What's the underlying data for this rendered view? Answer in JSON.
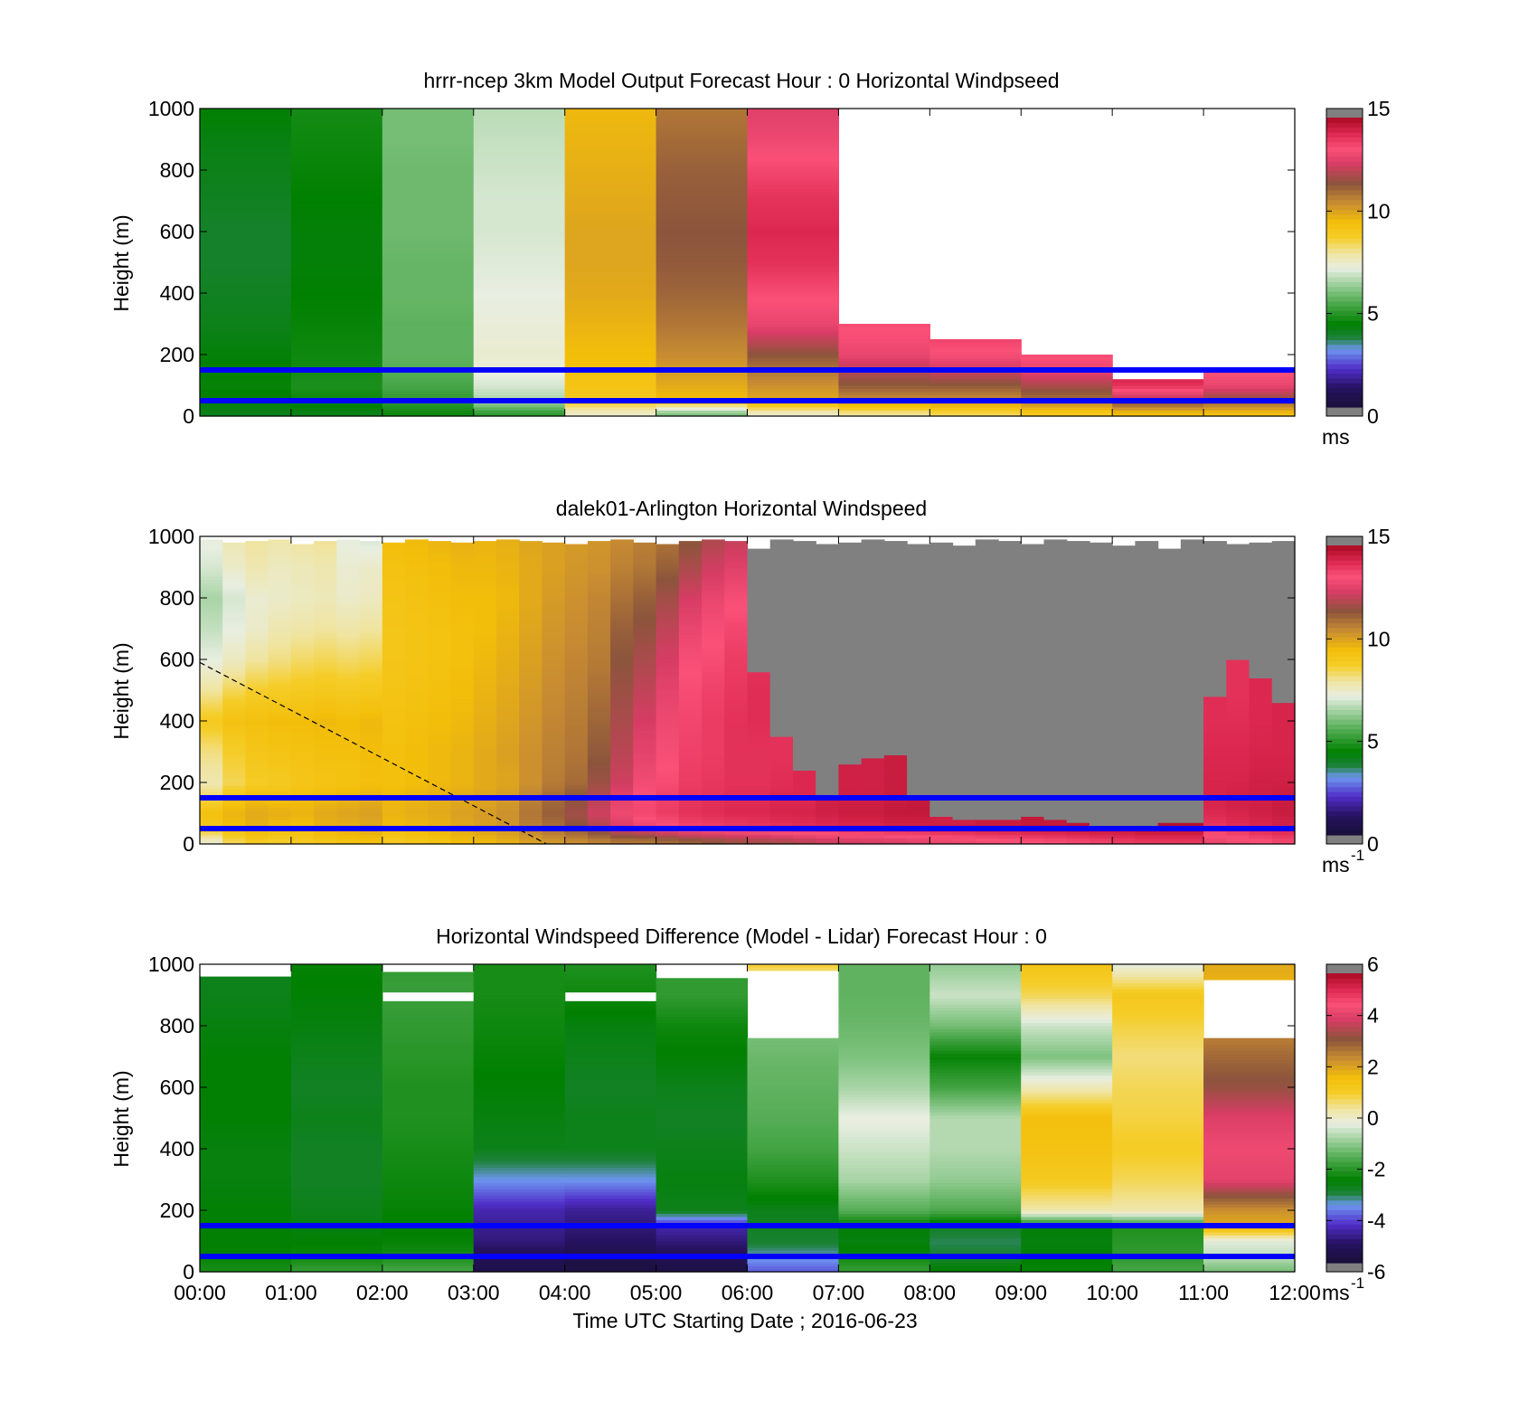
{
  "figure": {
    "xlabel": "Time UTC  Starting Date ; 2016-06-23",
    "x_ticks": [
      "00:00",
      "01:00",
      "02:00",
      "03:00",
      "04:00",
      "05:00",
      "06:00",
      "07:00",
      "08:00",
      "09:00",
      "10:00",
      "11:00",
      "12:00"
    ]
  },
  "chart_data": [
    {
      "type": "heatmap",
      "title": "hrrr-ncep 3km Model Output   Forecast Hour : 0 Horizontal Windpseed",
      "ylabel": "Height (m)",
      "ylim": [
        0,
        1000
      ],
      "xlim": [
        0,
        12
      ],
      "y_ticks": [
        "0",
        "200",
        "400",
        "600",
        "800",
        "1000"
      ],
      "colorbar": {
        "min": 0,
        "max": 15,
        "ticks": [
          "0",
          "5",
          "10",
          "15"
        ],
        "unit": "ms",
        "unit_sup": ""
      },
      "reference_lines_m": [
        50,
        150
      ],
      "reference_line_color": "#0000ff",
      "x_hours": [
        0,
        1,
        2,
        3,
        4,
        5,
        6,
        7,
        8,
        9,
        10,
        11
      ],
      "column_top_m": [
        1000,
        1000,
        1000,
        1000,
        1000,
        1000,
        1000,
        300,
        250,
        200,
        120,
        150
      ],
      "gray_above_m": [
        null,
        null,
        null,
        null,
        null,
        null,
        null,
        300,
        250,
        200,
        120,
        150
      ],
      "profile_heights_m": [
        10,
        50,
        100,
        150,
        200,
        300,
        400,
        500,
        600,
        700,
        800,
        900,
        1000
      ],
      "windspeed_ms": [
        [
          4.0,
          4.2,
          4.4,
          4.3,
          4.2,
          4.0,
          3.9,
          3.8,
          3.8,
          3.9,
          4.0,
          4.1,
          4.3
        ],
        [
          4.0,
          4.5,
          4.7,
          4.6,
          4.5,
          4.4,
          4.3,
          4.2,
          4.2,
          4.3,
          4.4,
          4.5,
          4.6
        ],
        [
          4.5,
          5.0,
          5.3,
          5.5,
          5.6,
          5.6,
          5.7,
          5.7,
          5.8,
          5.8,
          5.8,
          5.9,
          5.9
        ],
        [
          5.0,
          6.5,
          7.0,
          7.3,
          7.4,
          7.3,
          7.2,
          7.1,
          7.0,
          7.0,
          6.9,
          6.8,
          6.7
        ],
        [
          7.5,
          9.0,
          9.3,
          9.5,
          9.6,
          9.8,
          10.0,
          10.1,
          10.1,
          10.0,
          9.9,
          9.8,
          9.7
        ],
        [
          6.0,
          9.5,
          10.0,
          10.3,
          10.6,
          11.0,
          11.3,
          11.5,
          11.6,
          11.5,
          11.4,
          11.2,
          11.0
        ],
        [
          7.5,
          10.0,
          10.5,
          11.0,
          11.6,
          13.0,
          13.5,
          14.0,
          14.2,
          14.0,
          13.6,
          13.1,
          12.8
        ],
        [
          8.0,
          10.5,
          11.5,
          12.2,
          13.0,
          13.5
        ],
        [
          8.5,
          10.5,
          11.5,
          12.5,
          13.3,
          14.0
        ],
        [
          9.0,
          11.0,
          12.0,
          13.0,
          13.5
        ],
        [
          9.5,
          12.0,
          14.0,
          14.5
        ],
        [
          9.5,
          11.5,
          13.0,
          13.5
        ]
      ]
    },
    {
      "type": "heatmap",
      "title": "dalek01-Arlington  Horizontal Windspeed",
      "ylabel": "Height (m)",
      "ylim": [
        0,
        1000
      ],
      "xlim": [
        0,
        12
      ],
      "y_ticks": [
        "0",
        "200",
        "400",
        "600",
        "800",
        "1000"
      ],
      "colorbar": {
        "min": 0,
        "max": 15,
        "ticks": [
          "0",
          "5",
          "10",
          "15"
        ],
        "unit": "ms",
        "unit_sup": "-1"
      },
      "reference_lines_m": [
        50,
        150
      ],
      "reference_line_color": "#0000ff",
      "diagonal_line_m": {
        "x_hours": [
          0,
          3.8
        ],
        "heights_m": [
          590,
          0
        ]
      },
      "x_hours": [
        0,
        0.25,
        0.5,
        0.75,
        1,
        1.25,
        1.5,
        1.75,
        2,
        2.25,
        2.5,
        2.75,
        3,
        3.25,
        3.5,
        3.75,
        4,
        4.25,
        4.5,
        4.75,
        5,
        5.25,
        5.5,
        5.75,
        6,
        6.25,
        6.5,
        6.75,
        7,
        7.25,
        7.5,
        7.75,
        8,
        8.25,
        8.5,
        8.75,
        9,
        9.25,
        9.5,
        9.75,
        10,
        10.25,
        10.5,
        10.75,
        11,
        11.25,
        11.5,
        11.75
      ],
      "column_top_m": [
        990,
        980,
        985,
        990,
        975,
        985,
        990,
        985,
        980,
        990,
        985,
        980,
        985,
        990,
        985,
        980,
        975,
        985,
        990,
        980,
        975,
        985,
        990,
        985,
        960,
        990,
        985,
        975,
        980,
        990,
        985,
        975,
        980,
        970,
        990,
        985,
        975,
        990,
        985,
        980,
        970,
        985,
        960,
        990,
        985,
        975,
        980,
        985
      ],
      "gray_above_m": [
        null,
        null,
        null,
        null,
        null,
        null,
        null,
        null,
        null,
        null,
        null,
        null,
        null,
        null,
        null,
        null,
        null,
        null,
        null,
        null,
        null,
        null,
        null,
        null,
        560,
        350,
        240,
        160,
        260,
        280,
        290,
        160,
        90,
        85,
        85,
        80,
        90,
        80,
        70,
        65,
        60,
        60,
        70,
        70,
        480,
        600,
        540,
        460
      ],
      "profile_heights_m": [
        10,
        50,
        100,
        150,
        200,
        300,
        400,
        500,
        600,
        700,
        800,
        900,
        1000
      ],
      "windspeed_ms": [
        [
          7.5,
          9.0,
          9.5,
          8.5,
          7.8,
          8.2,
          9.0,
          8.0,
          7.2,
          6.8,
          6.5,
          7.0,
          7.3
        ],
        [
          8.5,
          9.5,
          9.8,
          9.2,
          8.5,
          8.8,
          9.4,
          8.5,
          7.6,
          7.2,
          7.0,
          7.5,
          7.8
        ],
        [
          9.0,
          9.8,
          10.0,
          9.6,
          8.9,
          9.2,
          9.5,
          8.8,
          8.0,
          7.5,
          7.4,
          7.8,
          8.0
        ],
        [
          8.8,
          9.6,
          9.9,
          9.5,
          9.0,
          9.3,
          9.6,
          8.9,
          8.2,
          7.8,
          7.5,
          7.6,
          7.9
        ],
        [
          9.0,
          9.5,
          9.8,
          9.6,
          9.2,
          9.4,
          9.6,
          9.0,
          8.4,
          7.9,
          7.6,
          7.7,
          8.0
        ],
        [
          9.2,
          9.8,
          10.0,
          9.7,
          9.3,
          9.5,
          9.7,
          9.1,
          8.5,
          8.0,
          7.7,
          7.8,
          8.1
        ],
        [
          9.4,
          9.9,
          10.1,
          9.8,
          9.4,
          9.5,
          9.6,
          9.0,
          8.4,
          7.9,
          7.5,
          7.4,
          7.2
        ],
        [
          9.5,
          10.0,
          10.2,
          9.9,
          9.5,
          9.6,
          9.7,
          9.1,
          8.5,
          8.0,
          7.6,
          7.5,
          7.0
        ],
        [
          9.0,
          9.6,
          9.8,
          9.7,
          9.5,
          9.5,
          9.4,
          9.3,
          9.2,
          9.2,
          9.3,
          9.4,
          9.6
        ],
        [
          9.2,
          9.7,
          9.9,
          9.8,
          9.6,
          9.6,
          9.5,
          9.4,
          9.3,
          9.3,
          9.4,
          9.5,
          9.7
        ],
        [
          9.4,
          9.8,
          10.0,
          9.9,
          9.7,
          9.7,
          9.6,
          9.5,
          9.4,
          9.4,
          9.5,
          9.6,
          9.8
        ],
        [
          9.6,
          10.0,
          10.2,
          10.0,
          9.8,
          9.8,
          9.7,
          9.6,
          9.5,
          9.5,
          9.6,
          9.7,
          9.9
        ],
        [
          9.7,
          10.2,
          10.3,
          10.1,
          10.0,
          10.0,
          9.9,
          9.8,
          9.7,
          9.6,
          9.6,
          9.7,
          9.8
        ],
        [
          9.9,
          10.4,
          10.5,
          10.3,
          10.1,
          10.2,
          10.1,
          10.0,
          9.9,
          9.8,
          9.7,
          9.8,
          9.9
        ],
        [
          10.2,
          10.8,
          11.0,
          10.8,
          10.5,
          10.5,
          10.4,
          10.3,
          10.2,
          10.1,
          10.0,
          10.0,
          10.1
        ],
        [
          10.4,
          11.1,
          11.4,
          11.2,
          10.9,
          10.8,
          10.7,
          10.6,
          10.5,
          10.4,
          10.3,
          10.2,
          10.2
        ],
        [
          10.6,
          11.5,
          11.9,
          11.6,
          11.2,
          11.0,
          10.9,
          10.8,
          10.7,
          10.6,
          10.5,
          10.4,
          10.3
        ],
        [
          10.8,
          12.0,
          12.5,
          12.2,
          11.8,
          11.5,
          11.3,
          11.1,
          10.9,
          10.8,
          10.7,
          10.5,
          10.4
        ],
        [
          11.0,
          12.6,
          13.1,
          12.9,
          12.5,
          12.2,
          12.0,
          11.8,
          11.6,
          11.4,
          11.1,
          10.8,
          10.6
        ],
        [
          11.0,
          12.9,
          13.6,
          13.5,
          13.2,
          12.9,
          12.6,
          12.3,
          12.0,
          11.7,
          11.4,
          11.0,
          10.8
        ],
        [
          11.2,
          13.2,
          13.8,
          13.7,
          13.5,
          13.3,
          13.1,
          12.9,
          12.6,
          12.3,
          11.9,
          11.4,
          11.0
        ],
        [
          11.4,
          13.5,
          14.0,
          13.9,
          13.8,
          13.7,
          13.6,
          13.5,
          13.3,
          13.0,
          12.6,
          12.0,
          11.5
        ],
        [
          11.6,
          13.6,
          14.1,
          14.0,
          13.9,
          13.8,
          13.8,
          13.7,
          13.5,
          13.3,
          13.0,
          12.5,
          12.0
        ],
        [
          11.8,
          13.7,
          14.2,
          14.1,
          14.0,
          14.0,
          14.0,
          13.9,
          13.8,
          13.6,
          13.3,
          12.8,
          12.3
        ],
        [
          11.9,
          13.8,
          14.2,
          14.1,
          14.0,
          14.0,
          14.1,
          14.1,
          14.0
        ],
        [
          12.0,
          13.9,
          14.3,
          14.2,
          14.1,
          14.0
        ],
        [
          12.2,
          14.0,
          14.3,
          14.2
        ],
        [
          12.4,
          14.1,
          14.4
        ],
        [
          12.5,
          14.2,
          14.5,
          14.4
        ],
        [
          12.6,
          14.2,
          14.5,
          14.4
        ],
        [
          12.7,
          14.3,
          14.6,
          14.5
        ],
        [
          12.8,
          14.3,
          14.6
        ],
        [
          13.0,
          14.4
        ],
        [
          13.1,
          14.4
        ],
        [
          13.2,
          14.5
        ],
        [
          13.3,
          14.5
        ],
        [
          13.4,
          14.6
        ],
        [
          13.5,
          14.6
        ],
        [
          13.6,
          14.7
        ],
        [
          13.7,
          14.7
        ],
        [
          13.8,
          14.7
        ],
        [
          13.9,
          14.8
        ],
        [
          13.9,
          14.8
        ],
        [
          13.9,
          14.8
        ],
        [
          13.0,
          13.8,
          14.2,
          14.3,
          14.3,
          14.2,
          14.1
        ],
        [
          13.2,
          14.0,
          14.3,
          14.4,
          14.3,
          14.2,
          14.1,
          14.0
        ],
        [
          13.4,
          14.2,
          14.4,
          14.4,
          14.4,
          14.3,
          14.2
        ],
        [
          13.6,
          14.3,
          14.5,
          14.5,
          14.4,
          14.3
        ]
      ]
    },
    {
      "type": "heatmap",
      "title": "Horizontal Windspeed Difference (Model - Lidar) Forecast Hour : 0",
      "ylabel": "Height (m)",
      "ylim": [
        0,
        1000
      ],
      "xlim": [
        0,
        12
      ],
      "y_ticks": [
        "0",
        "200",
        "400",
        "600",
        "800",
        "1000"
      ],
      "colorbar": {
        "min": -6,
        "max": 6,
        "ticks": [
          "-6",
          "-4",
          "-2",
          "0",
          "2",
          "4",
          "6"
        ],
        "unit": "ms",
        "unit_sup": "-1"
      },
      "reference_lines_m": [
        50,
        150
      ],
      "reference_line_color": "#0000ff",
      "x_hours": [
        0,
        1,
        2,
        3,
        4,
        5,
        6,
        7,
        8,
        9,
        10,
        11
      ],
      "column_top_m": [
        960,
        1000,
        975,
        1000,
        1000,
        955,
        1000,
        1000,
        1000,
        1000,
        1000,
        1000
      ],
      "gaps_m": [
        [],
        [],
        [
          [
            885,
            915
          ]
        ],
        [],
        [
          [
            880,
            910
          ]
        ],
        [],
        [
          [
            760,
            980
          ]
        ],
        [],
        [],
        [],
        [],
        [
          [
            765,
            955
          ]
        ]
      ],
      "profile_heights_m": [
        10,
        50,
        100,
        150,
        200,
        300,
        400,
        500,
        600,
        700,
        800,
        900,
        1000
      ],
      "difference_ms": [
        [
          -2.3,
          -2.5,
          -2.6,
          -2.6,
          -2.6,
          -2.7,
          -2.7,
          -2.6,
          -2.6,
          -2.6,
          -2.7,
          -2.8,
          -2.8
        ],
        [
          -2.0,
          -2.4,
          -2.6,
          -2.7,
          -2.8,
          -2.9,
          -2.9,
          -2.8,
          -2.9,
          -2.8,
          -2.7,
          -2.6,
          -2.5
        ],
        [
          -1.8,
          -2.3,
          -2.5,
          -2.6,
          -2.5,
          -2.4,
          -2.3,
          -2.2,
          -2.2,
          -2.1,
          -2.0,
          -1.9,
          -2.0
        ],
        [
          -5.6,
          -5.4,
          -5.0,
          -4.8,
          -4.6,
          -3.6,
          -2.8,
          -2.7,
          -2.6,
          -2.5,
          -2.4,
          -2.3,
          -2.3
        ],
        [
          -5.8,
          -5.6,
          -5.2,
          -5.0,
          -4.8,
          -3.6,
          -2.8,
          -2.8,
          -2.9,
          -2.8,
          -2.7,
          -2.4,
          -2.2
        ],
        [
          -5.7,
          -5.4,
          -5.0,
          -4.6,
          -2.8,
          -2.7,
          -2.8,
          -2.9,
          -2.8,
          -2.6,
          -2.4,
          -2.0,
          -2.0
        ],
        [
          -4.0,
          -3.5,
          -3.0,
          -2.9,
          -2.8,
          -2.2,
          -1.8,
          -1.6,
          -1.5,
          -1.4,
          -1.2,
          -0.6,
          1.0
        ],
        [
          -2.0,
          -2.4,
          -2.7,
          -2.6,
          -1.6,
          -0.8,
          -0.5,
          -0.2,
          -0.8,
          -1.2,
          -1.4,
          -1.5,
          -1.5
        ],
        [
          -2.6,
          -3.0,
          -3.2,
          -2.9,
          -1.7,
          -1.0,
          -0.7,
          -0.7,
          -1.8,
          -2.5,
          -1.3,
          -0.5,
          -1.0
        ],
        [
          -2.5,
          -2.6,
          -2.7,
          -2.6,
          0.3,
          1.2,
          1.5,
          1.6,
          0.2,
          -1.2,
          -0.5,
          0.8,
          1.4
        ],
        [
          -1.8,
          -2.0,
          -2.1,
          -2.2,
          0.3,
          0.8,
          1.1,
          0.9,
          0.8,
          0.6,
          0.9,
          1.3,
          -0.2
        ],
        [
          -1.2,
          -0.6,
          -0.3,
          2.0,
          2.4,
          4.3,
          4.5,
          4.2,
          3.4,
          3.0,
          2.5,
          1.8,
          2.0
        ]
      ]
    }
  ]
}
